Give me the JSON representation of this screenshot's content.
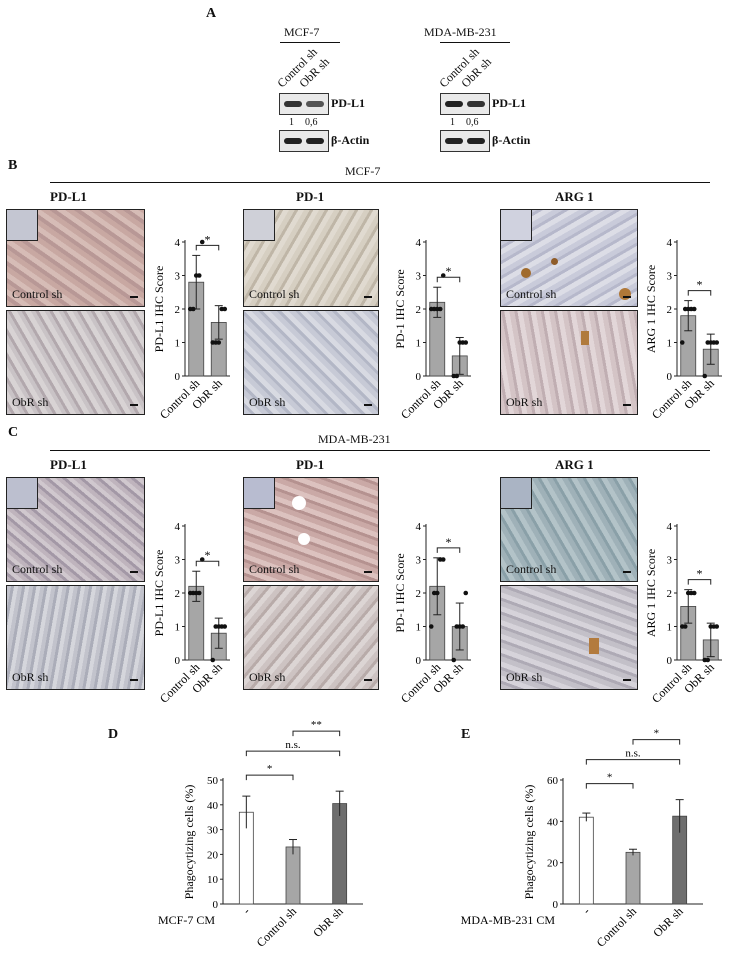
{
  "panel_a": {
    "letter": "A",
    "groups": [
      {
        "cell_line": "MCF-7",
        "lanes": [
          "Control sh",
          "ObR sh"
        ],
        "quant": [
          "1",
          "0,6"
        ]
      },
      {
        "cell_line": "MDA-MB-231",
        "lanes": [
          "Control sh",
          "ObR sh"
        ],
        "quant": [
          "1",
          "0,6"
        ]
      }
    ],
    "blot_labels": [
      "PD-L1",
      "β-Actin"
    ]
  },
  "panel_b": {
    "letter": "B",
    "cell_line": "MCF-7",
    "stains": [
      "PD-L1",
      "PD-1",
      "ARG 1"
    ],
    "image_labels": [
      "Control sh",
      "ObR sh"
    ]
  },
  "panel_c": {
    "letter": "C",
    "cell_line": "MDA-MB-231",
    "stains": [
      "PD-L1",
      "PD-1",
      "ARG 1"
    ],
    "image_labels": [
      "Control sh",
      "ObR sh"
    ]
  },
  "panel_d": {
    "letter": "D"
  },
  "panel_e": {
    "letter": "E"
  },
  "chart_data": [
    {
      "id": "B-PDL1",
      "type": "bar",
      "categories": [
        "Control sh",
        "ObR sh"
      ],
      "values": [
        2.8,
        1.6
      ],
      "errors": [
        0.8,
        0.5
      ],
      "points": [
        [
          2,
          2,
          3,
          3,
          4
        ],
        [
          1,
          1,
          1,
          2,
          2
        ]
      ],
      "ylabel": "PD-L1 IHC Score",
      "ylim": [
        0,
        4
      ],
      "yticks": [
        "0",
        "1",
        "2",
        "3",
        "4"
      ],
      "sig": "*"
    },
    {
      "id": "B-PD1",
      "type": "bar",
      "categories": [
        "Control sh",
        "ObR sh"
      ],
      "values": [
        2.2,
        0.6
      ],
      "errors": [
        0.45,
        0.55
      ],
      "points": [
        [
          2,
          2,
          2,
          2,
          3
        ],
        [
          0,
          0,
          1,
          1,
          1
        ]
      ],
      "ylabel": "PD-1 IHC Score",
      "ylim": [
        0,
        4
      ],
      "yticks": [
        "0",
        "1",
        "2",
        "3",
        "4"
      ],
      "sig": "*"
    },
    {
      "id": "B-ARG1",
      "type": "bar",
      "categories": [
        "Control sh",
        "ObR sh"
      ],
      "values": [
        1.8,
        0.8
      ],
      "errors": [
        0.45,
        0.45
      ],
      "points": [
        [
          1,
          2,
          2,
          2,
          2
        ],
        [
          0,
          1,
          1,
          1,
          1
        ]
      ],
      "ylabel": "ARG 1 IHC Score",
      "ylim": [
        0,
        4
      ],
      "yticks": [
        "0",
        "1",
        "2",
        "3",
        "4"
      ],
      "sig": "*"
    },
    {
      "id": "C-PDL1",
      "type": "bar",
      "categories": [
        "Control sh",
        "ObR sh"
      ],
      "values": [
        2.2,
        0.8
      ],
      "errors": [
        0.45,
        0.45
      ],
      "points": [
        [
          2,
          2,
          2,
          2,
          3
        ],
        [
          0,
          1,
          1,
          1,
          1
        ]
      ],
      "ylabel": "PD-L1 IHC Score",
      "ylim": [
        0,
        4
      ],
      "yticks": [
        "0",
        "1",
        "2",
        "3",
        "4"
      ],
      "sig": "*"
    },
    {
      "id": "C-PD1",
      "type": "bar",
      "categories": [
        "Control sh",
        "ObR sh"
      ],
      "values": [
        2.2,
        1.0
      ],
      "errors": [
        0.85,
        0.7
      ],
      "points": [
        [
          1,
          2,
          2,
          3,
          3
        ],
        [
          0,
          1,
          1,
          1,
          2
        ]
      ],
      "ylabel": "PD-1 IHC Score",
      "ylim": [
        0,
        4
      ],
      "yticks": [
        "0",
        "1",
        "2",
        "3",
        "4"
      ],
      "sig": "*"
    },
    {
      "id": "C-ARG1",
      "type": "bar",
      "categories": [
        "Control sh",
        "ObR sh"
      ],
      "values": [
        1.6,
        0.6
      ],
      "errors": [
        0.5,
        0.5
      ],
      "points": [
        [
          1,
          1,
          2,
          2,
          2
        ],
        [
          0,
          0,
          1,
          1,
          1
        ]
      ],
      "ylabel": "ARG 1 IHC Score",
      "ylim": [
        0,
        4
      ],
      "yticks": [
        "0",
        "1",
        "2",
        "3",
        "4"
      ],
      "sig": "*"
    },
    {
      "id": "D",
      "type": "bar",
      "categories": [
        "-",
        "Control sh",
        "ObR sh"
      ],
      "values": [
        37,
        23,
        40.5
      ],
      "errors": [
        6.5,
        3,
        5
      ],
      "colors": [
        "#ffffff",
        "#a6a6a6",
        "#6e6e6e"
      ],
      "ylabel": "Phagocytizing cells (%)",
      "ylim": [
        0,
        50
      ],
      "yticks": [
        "0",
        "10",
        "20",
        "30",
        "40",
        "50"
      ],
      "xaxis_title": "MCF-7 CM",
      "brackets": [
        {
          "from": 0,
          "to": 1,
          "label": "*"
        },
        {
          "from": 0,
          "to": 2,
          "label": "n.s."
        },
        {
          "from": 1,
          "to": 2,
          "label": "**"
        }
      ]
    },
    {
      "id": "E",
      "type": "bar",
      "categories": [
        "-",
        "Control sh",
        "ObR sh"
      ],
      "values": [
        42,
        25,
        42.5
      ],
      "errors": [
        2,
        1.5,
        8
      ],
      "colors": [
        "#ffffff",
        "#a6a6a6",
        "#6e6e6e"
      ],
      "ylabel": "Phagocytizing cells (%)",
      "ylim": [
        0,
        60
      ],
      "yticks": [
        "0",
        "20",
        "40",
        "60"
      ],
      "xaxis_title": "MDA-MB-231 CM",
      "brackets": [
        {
          "from": 0,
          "to": 1,
          "label": "*"
        },
        {
          "from": 0,
          "to": 2,
          "label": "n.s."
        },
        {
          "from": 1,
          "to": 2,
          "label": "*"
        }
      ]
    }
  ]
}
